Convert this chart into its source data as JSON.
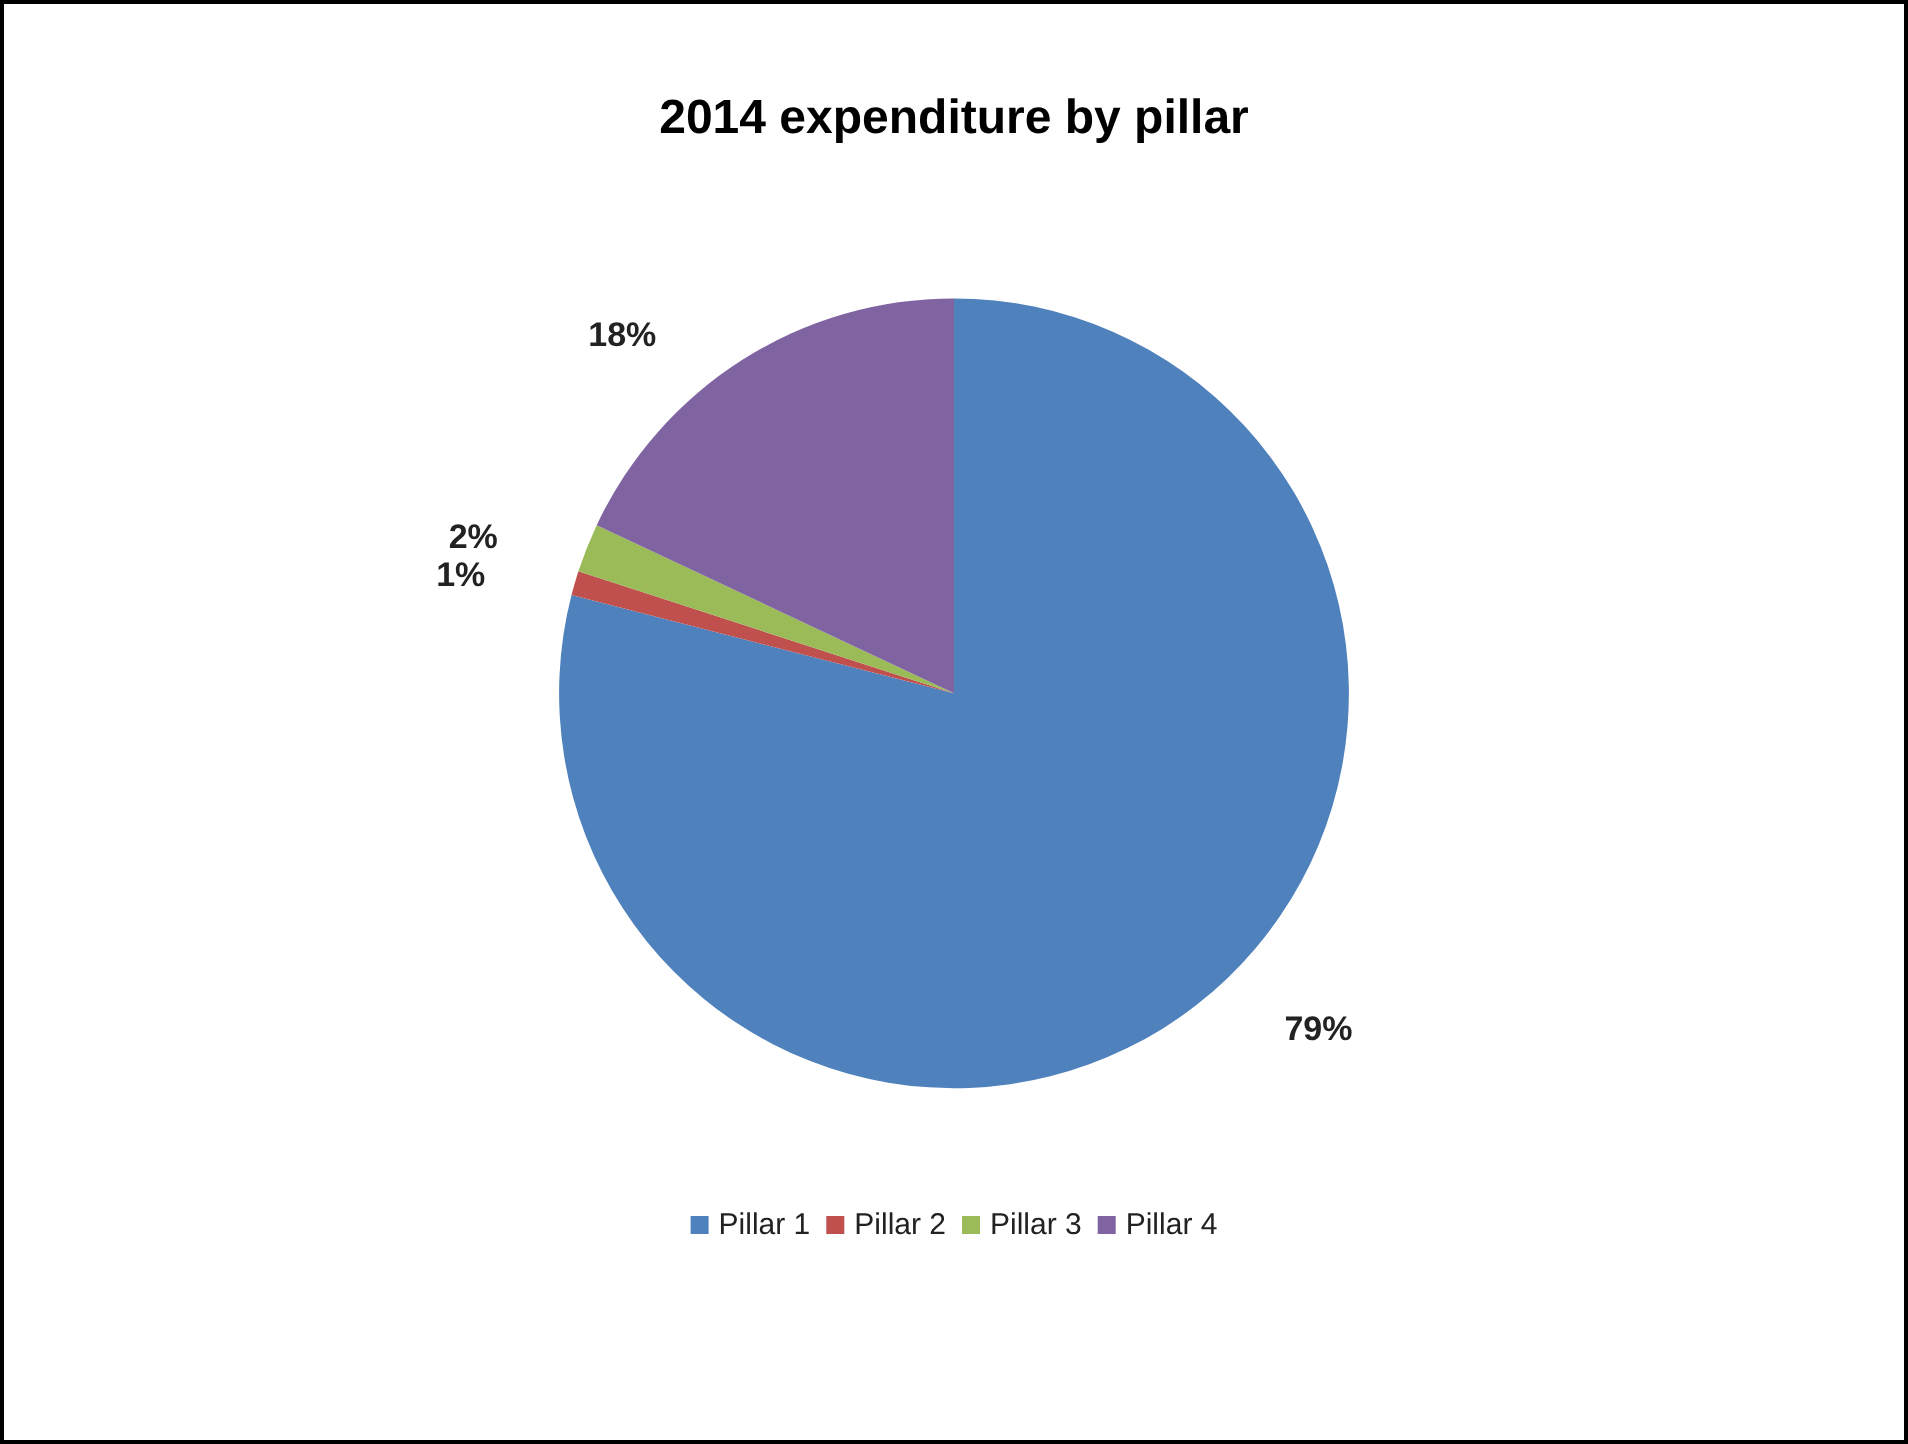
{
  "chart_data": {
    "type": "pie",
    "title": "2014 expenditure by pillar",
    "categories": [
      "Pillar 1",
      "Pillar 2",
      "Pillar 3",
      "Pillar 4"
    ],
    "values": [
      79,
      1,
      2,
      18
    ],
    "colors": [
      "#4f81bd",
      "#c0504d",
      "#9bbb59",
      "#8064a2"
    ],
    "value_labels": [
      "79%",
      "1%",
      "2%",
      "18%"
    ],
    "legend": "bottom"
  }
}
